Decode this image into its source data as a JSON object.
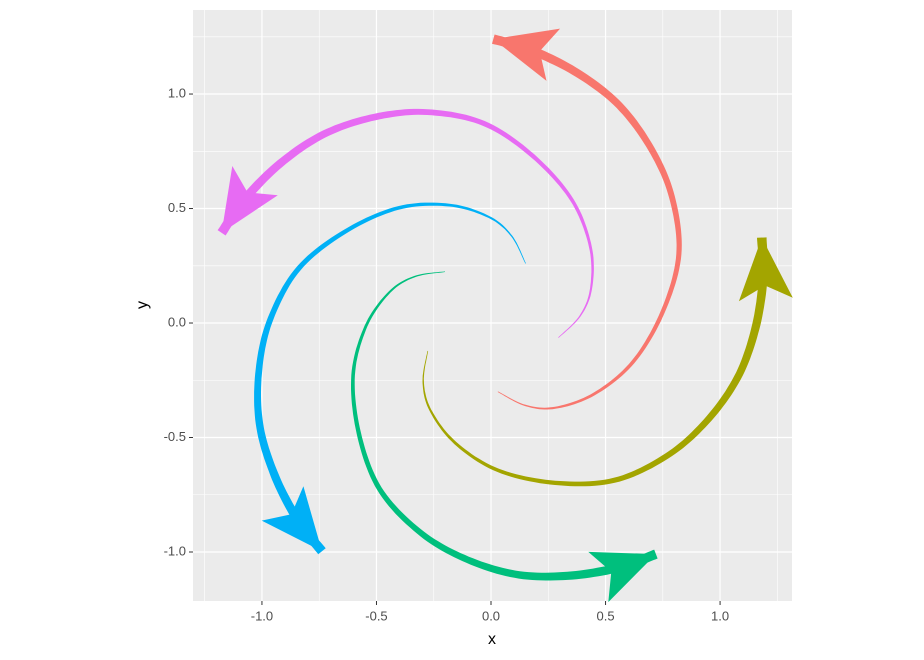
{
  "chart_data": {
    "type": "spiral-arrows",
    "x_label": "x",
    "y_label": "y",
    "xlim": [
      -1.301,
      1.314
    ],
    "ylim": [
      -1.214,
      1.367
    ],
    "xticks": [
      {
        "value": -1,
        "label": "-1.0"
      },
      {
        "value": -0.5,
        "label": "-0.5"
      },
      {
        "value": 0,
        "label": "0.0"
      },
      {
        "value": 0.5,
        "label": "0.5"
      },
      {
        "value": 1,
        "label": "1.0"
      }
    ],
    "yticks": [
      {
        "value": -1,
        "label": "-1.0"
      },
      {
        "value": -0.5,
        "label": "-0.5"
      },
      {
        "value": 0,
        "label": "0.0"
      },
      {
        "value": 0.5,
        "label": "0.5"
      },
      {
        "value": 1,
        "label": "1.0"
      }
    ],
    "xminor": [
      -1.25,
      -0.75,
      -0.25,
      0.25,
      0.75,
      1.25
    ],
    "yminor": [
      -0.75,
      -0.25,
      0.25,
      0.75,
      1.25
    ],
    "grid": true,
    "series": [
      {
        "color": "#F8766D",
        "x": [
          0.03,
          0.15,
          0.28,
          0.45,
          0.62,
          0.75,
          0.82,
          0.79,
          0.7,
          0.56,
          0.38,
          0.18,
          0.01
        ],
        "y": [
          -0.3,
          -0.36,
          -0.37,
          -0.31,
          -0.17,
          0.05,
          0.3,
          0.55,
          0.76,
          0.95,
          1.09,
          1.19,
          1.24
        ]
      },
      {
        "color": "#A3A500",
        "x": [
          -0.276,
          -0.296,
          -0.265,
          -0.156,
          0.03,
          0.28,
          0.538,
          0.767,
          0.939,
          1.076,
          1.154,
          1.188,
          1.182
        ],
        "y": [
          -0.122,
          -0.254,
          -0.38,
          -0.524,
          -0.643,
          -0.698,
          -0.687,
          -0.581,
          -0.431,
          -0.239,
          -0.024,
          0.197,
          0.373
        ]
      },
      {
        "color": "#00BF7D",
        "x": [
          -0.201,
          -0.333,
          -0.443,
          -0.546,
          -0.602,
          -0.577,
          -0.487,
          -0.316,
          -0.12,
          0.105,
          0.334,
          0.554,
          0.72
        ],
        "y": [
          0.224,
          0.203,
          0.135,
          -0.014,
          -0.228,
          -0.482,
          -0.724,
          -0.909,
          -1.026,
          -1.097,
          -1.104,
          -1.069,
          -1.009
        ]
      },
      {
        "color": "#00B0F6",
        "x": [
          0.151,
          0.09,
          -0.009,
          -0.182,
          -0.403,
          -0.636,
          -0.839,
          -0.962,
          -1.013,
          -1.011,
          -0.947,
          -0.846,
          -0.738
        ],
        "y": [
          0.26,
          0.38,
          0.463,
          0.515,
          0.503,
          0.4,
          0.239,
          0.02,
          -0.203,
          -0.439,
          -0.659,
          -0.857,
          -0.997
        ]
      },
      {
        "color": "#E76BF3",
        "x": [
          0.294,
          0.389,
          0.437,
          0.434,
          0.353,
          0.183,
          -0.032,
          -0.278,
          -0.506,
          -0.729,
          -0.92,
          -1.076,
          -1.176
        ],
        "y": [
          -0.064,
          0.031,
          0.152,
          0.332,
          0.538,
          0.729,
          0.872,
          0.921,
          0.9,
          0.825,
          0.697,
          0.54,
          0.394
        ]
      }
    ]
  }
}
